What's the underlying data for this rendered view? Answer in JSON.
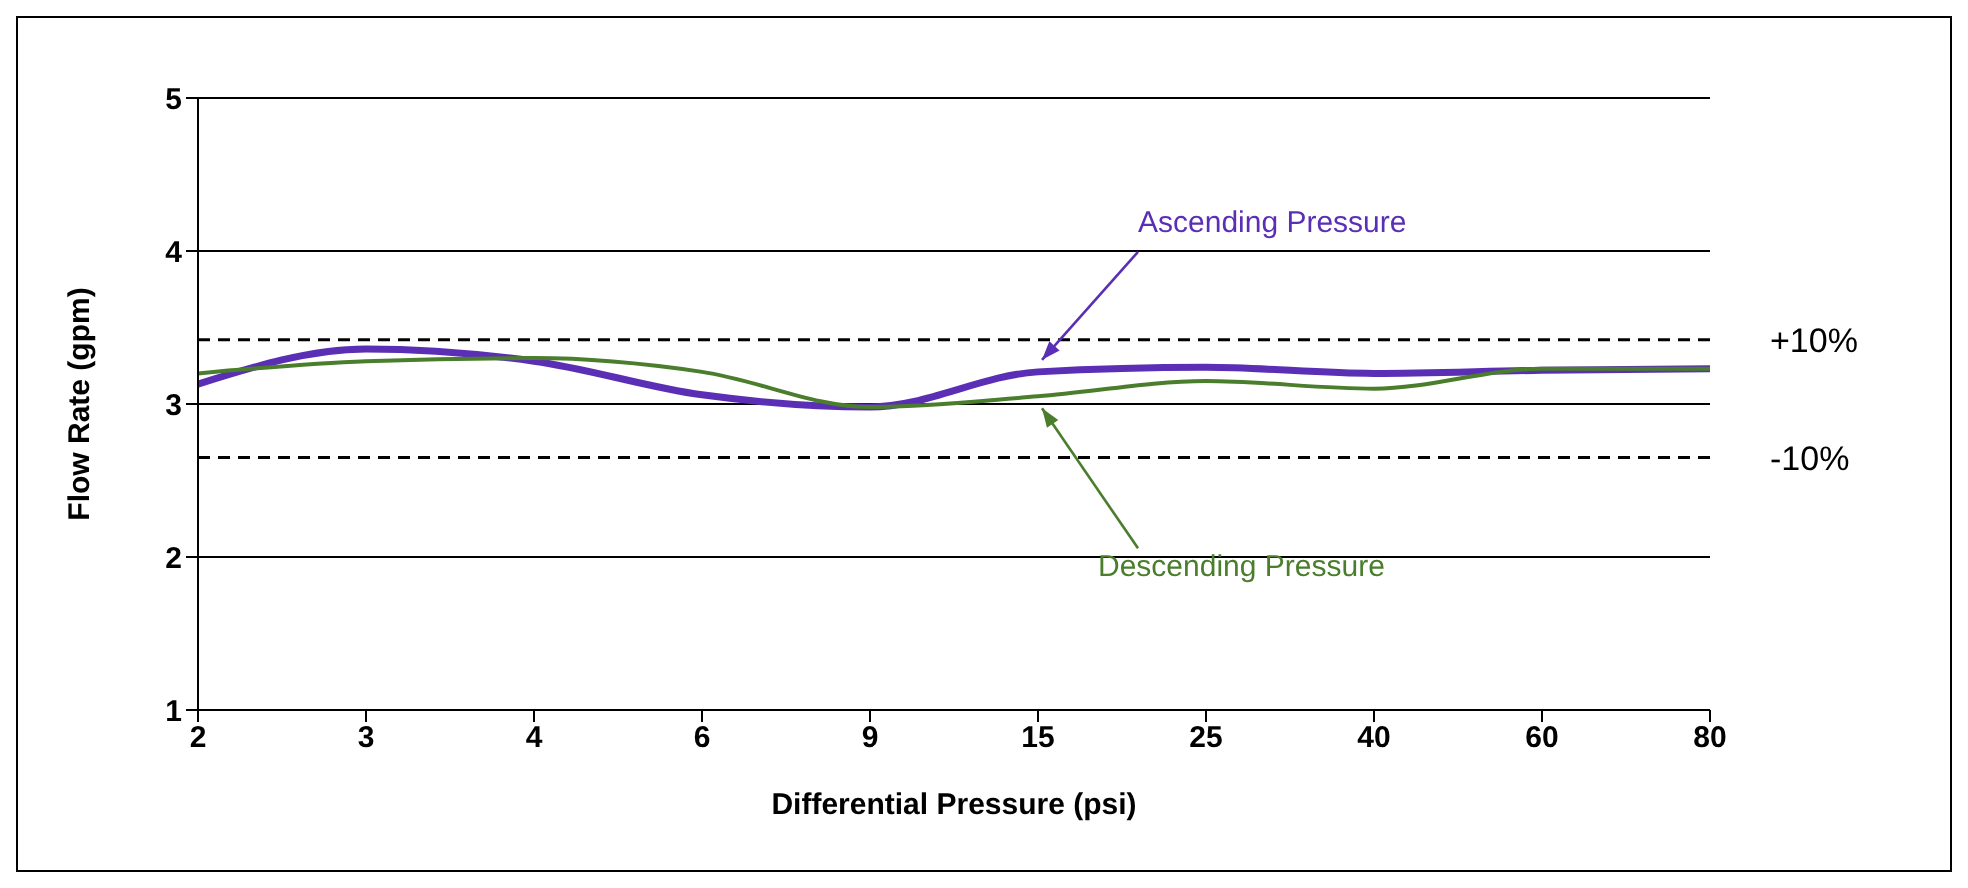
{
  "chart_data": {
    "type": "line",
    "xlabel": "Differential Pressure (psi)",
    "ylabel": "Flow Rate (gpm)",
    "categories": [
      "2",
      "3",
      "4",
      "6",
      "9",
      "15",
      "25",
      "40",
      "60",
      "80"
    ],
    "series": [
      {
        "name": "Ascending Pressure",
        "color": "#5b2fb5",
        "values": [
          3.13,
          3.36,
          3.28,
          3.06,
          2.98,
          3.21,
          3.24,
          3.2,
          3.22,
          3.23
        ]
      },
      {
        "name": "Descending Pressure",
        "color": "#4a7d2c",
        "values": [
          3.2,
          3.28,
          3.3,
          3.21,
          2.98,
          3.05,
          3.15,
          3.1,
          3.23,
          3.23
        ]
      }
    ],
    "annotations": [
      "+10%",
      "-10%"
    ],
    "ref_lines": [
      {
        "axis": "y",
        "value": 3.42,
        "color": "#000000",
        "line_style": "dashed"
      },
      {
        "axis": "y",
        "value": 2.65,
        "color": "#000000",
        "line_style": "dashed"
      }
    ],
    "ylim": [
      1,
      5
    ],
    "yticks": [
      1,
      2,
      3,
      4,
      5
    ],
    "grid": "y",
    "marker": "none",
    "line_style": "solid"
  }
}
